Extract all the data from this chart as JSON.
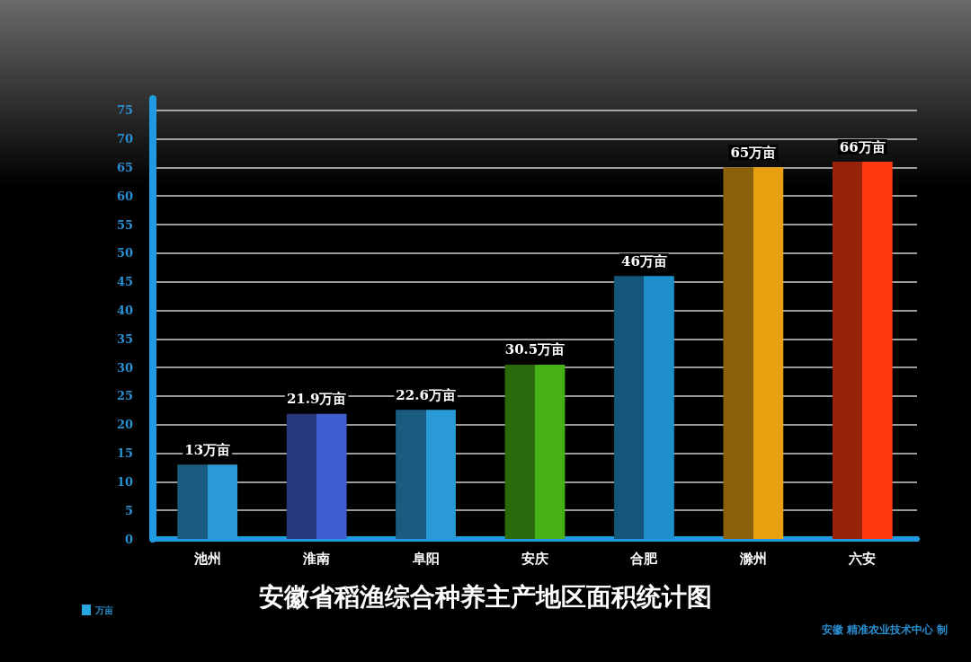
{
  "chart_data": {
    "type": "bar",
    "title": "安徽省稻渔综合种养主产地区面积统计图",
    "categories": [
      "池州",
      "淮南",
      "阜阳",
      "安庆",
      "合肥",
      "滁州",
      "六安"
    ],
    "series": [
      {
        "name": "万亩",
        "color": "#29a8e0",
        "values": [
          13,
          21.9,
          22.6,
          30.5,
          46,
          65,
          66
        ],
        "colors": [
          "#2a9ad6",
          "#3f5fd0",
          "#2a9ad6",
          "#46b016",
          "#1f8fcc",
          "#e8a010",
          "#ff3a10"
        ],
        "value_labels": [
          "13万亩",
          "21.9万亩",
          "22.6万亩",
          "30.5万亩",
          "46万亩",
          "65万亩",
          "66万亩"
        ]
      }
    ],
    "ylim": [
      0,
      77
    ],
    "yticks": [
      0,
      5,
      10,
      15,
      20,
      25,
      30,
      35,
      40,
      45,
      50,
      55,
      60,
      65,
      70,
      75
    ],
    "grid": "y",
    "legend": "bottom left",
    "annotations": [
      "安徽 精准农业技术中心 制"
    ]
  }
}
